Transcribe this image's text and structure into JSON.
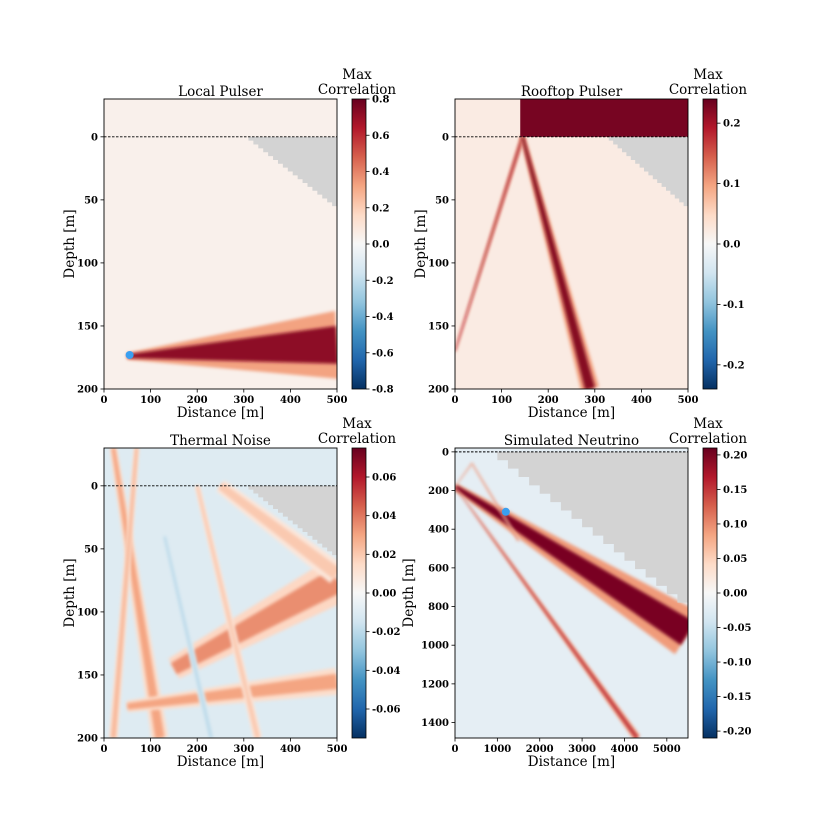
{
  "chart_data": [
    {
      "type": "heatmap",
      "title": "Local Pulser",
      "xlabel": "Distance [m]",
      "ylabel": "Depth [m]",
      "xlim": [
        0,
        500
      ],
      "ylim": [
        200,
        -30
      ],
      "xticks": [
        "0",
        "100",
        "200",
        "300",
        "400",
        "500"
      ],
      "yticks": [
        "0",
        "50",
        "100",
        "150",
        "200"
      ],
      "ytick_values": [
        0,
        50,
        100,
        150,
        200
      ],
      "colorbar": {
        "label_line1": "Max",
        "label_line2": "Correlation",
        "range": [
          -0.8,
          0.8
        ],
        "ticks": [
          "0.8",
          "0.6",
          "0.4",
          "0.2",
          "0.0",
          "-0.2",
          "-0.4",
          "-0.6",
          "-0.8"
        ],
        "tick_values": [
          0.8,
          0.6,
          0.4,
          0.2,
          0.0,
          -0.2,
          -0.4,
          -0.6,
          -0.8
        ]
      },
      "surface_line_depth": 0,
      "marker": {
        "x": 55,
        "y": 173,
        "color": "#3a9ff0"
      },
      "features": [
        {
          "kind": "beam",
          "from": [
            50,
            174
          ],
          "to": [
            500,
            165
          ],
          "width_start": 3,
          "width_end": 30,
          "value": 0.72
        }
      ],
      "background_value": 0.04,
      "masked_region": {
        "color": "#d3d3d3",
        "x_start": 310,
        "x_end": 500,
        "depth_at_start": 0,
        "depth_at_end": 55
      }
    },
    {
      "type": "heatmap",
      "title": "Rooftop Pulser",
      "xlabel": "Distance [m]",
      "ylabel": "Depth [m]",
      "xlim": [
        0,
        500
      ],
      "ylim": [
        200,
        -30
      ],
      "xticks": [
        "0",
        "100",
        "200",
        "300",
        "400",
        "500"
      ],
      "yticks": [
        "0",
        "50",
        "100",
        "150",
        "200"
      ],
      "ytick_values": [
        0,
        50,
        100,
        150,
        200
      ],
      "colorbar": {
        "label_line1": "Max",
        "label_line2": "Correlation",
        "range": [
          -0.24,
          0.24
        ],
        "ticks": [
          "0.2",
          "0.1",
          "0.0",
          "-0.1",
          "-0.2"
        ],
        "tick_values": [
          0.2,
          0.1,
          0.0,
          -0.1,
          -0.2
        ]
      },
      "surface_line_depth": 0,
      "features": [
        {
          "kind": "beam",
          "from": [
            145,
            0
          ],
          "to": [
            0,
            170
          ],
          "width_start": 5,
          "width_end": 2,
          "value": 0.2
        },
        {
          "kind": "beam",
          "from": [
            145,
            0
          ],
          "to": [
            290,
            200
          ],
          "width_start": 6,
          "width_end": 22,
          "value": 0.22
        },
        {
          "kind": "block",
          "x_start": 140,
          "x_end": 500,
          "depth_top": -30,
          "depth_bottom": 0,
          "value": 0.23
        }
      ],
      "background_value": 0.02,
      "masked_region": {
        "color": "#d3d3d3",
        "x_start": 330,
        "x_end": 500,
        "depth_at_start": 0,
        "depth_at_end": 55
      }
    },
    {
      "type": "heatmap",
      "title": "Thermal Noise",
      "xlabel": "Distance [m]",
      "ylabel": "Depth [m]",
      "xlim": [
        0,
        500
      ],
      "ylim": [
        200,
        -30
      ],
      "xticks": [
        "0",
        "100",
        "200",
        "300",
        "400",
        "500"
      ],
      "yticks": [
        "0",
        "50",
        "100",
        "150",
        "200"
      ],
      "ytick_values": [
        0,
        50,
        100,
        150,
        200
      ],
      "colorbar": {
        "label_line1": "Max",
        "label_line2": "Correlation",
        "range": [
          -0.075,
          0.075
        ],
        "ticks": [
          "0.06",
          "0.04",
          "0.02",
          "0.00",
          "-0.02",
          "-0.04",
          "-0.06"
        ],
        "tick_values": [
          0.06,
          0.04,
          0.02,
          0.0,
          -0.02,
          -0.04,
          -0.06
        ]
      },
      "surface_line_depth": 0,
      "features": [
        {
          "kind": "beam",
          "from": [
            20,
            -30
          ],
          "to": [
            120,
            200
          ],
          "width_start": 8,
          "width_end": 20,
          "value": 0.03
        },
        {
          "kind": "beam",
          "from": [
            70,
            -30
          ],
          "to": [
            20,
            200
          ],
          "width_start": 6,
          "width_end": 10,
          "value": 0.025
        },
        {
          "kind": "beam",
          "from": [
            150,
            145
          ],
          "to": [
            500,
            75
          ],
          "width_start": 10,
          "width_end": 20,
          "value": 0.035
        },
        {
          "kind": "beam",
          "from": [
            50,
            175
          ],
          "to": [
            500,
            155
          ],
          "width_start": 5,
          "width_end": 12,
          "value": 0.03
        },
        {
          "kind": "beam",
          "from": [
            200,
            0
          ],
          "to": [
            330,
            200
          ],
          "width_start": 6,
          "width_end": 10,
          "value": 0.02
        },
        {
          "kind": "beam",
          "from": [
            250,
            0
          ],
          "to": [
            500,
            70
          ],
          "width_start": 6,
          "width_end": 10,
          "value": 0.02
        },
        {
          "kind": "beam",
          "from": [
            130,
            40
          ],
          "to": [
            230,
            200
          ],
          "width_start": 6,
          "width_end": 8,
          "value": -0.02
        }
      ],
      "background_value": -0.01,
      "masked_region": {
        "color": "#d3d3d3",
        "x_start": 310,
        "x_end": 500,
        "depth_at_start": 0,
        "depth_at_end": 55
      }
    },
    {
      "type": "heatmap",
      "title": "Simulated Neutrino",
      "xlabel": "Distance [m]",
      "ylabel": "Depth [m]",
      "xlim": [
        0,
        5500
      ],
      "ylim": [
        1480,
        -20
      ],
      "xticks": [
        "0",
        "1000",
        "2000",
        "3000",
        "4000",
        "5000"
      ],
      "xtick_values": [
        0,
        1000,
        2000,
        3000,
        4000,
        5000
      ],
      "yticks": [
        "0",
        "200",
        "400",
        "600",
        "800",
        "1000",
        "1200",
        "1400"
      ],
      "ytick_values": [
        0,
        200,
        400,
        600,
        800,
        1000,
        1200,
        1400
      ],
      "colorbar": {
        "label_line1": "Max",
        "label_line2": "Correlation",
        "range": [
          -0.21,
          0.21
        ],
        "ticks": [
          "0.20",
          "0.15",
          "0.10",
          "0.05",
          "0.00",
          "-0.05",
          "-0.10",
          "-0.15",
          "-0.20"
        ],
        "tick_values": [
          0.2,
          0.15,
          0.1,
          0.05,
          0.0,
          -0.05,
          -0.1,
          -0.15,
          -0.2
        ]
      },
      "surface_line_depth": 0,
      "marker": {
        "x": 1200,
        "y": 310,
        "color": "#3a9ff0"
      },
      "features": [
        {
          "kind": "beam",
          "from": [
            0,
            180
          ],
          "to": [
            5500,
            940
          ],
          "width_start": 20,
          "width_end": 140,
          "value": 0.2
        },
        {
          "kind": "beam",
          "from": [
            0,
            180
          ],
          "to": [
            4300,
            1480
          ],
          "width_start": 10,
          "width_end": 100,
          "value": 0.15
        },
        {
          "kind": "beam",
          "from": [
            0,
            180
          ],
          "to": [
            400,
            60
          ],
          "width_start": 10,
          "width_end": 15,
          "value": 0.12
        },
        {
          "kind": "beam",
          "from": [
            400,
            60
          ],
          "to": [
            1500,
            460
          ],
          "width_start": 15,
          "width_end": 25,
          "value": 0.12
        }
      ],
      "background_value": -0.02,
      "masked_region": {
        "color": "#d3d3d3",
        "x_start": 1000,
        "x_end": 5500,
        "depth_at_start": 0,
        "depth_at_end": 780
      }
    }
  ]
}
